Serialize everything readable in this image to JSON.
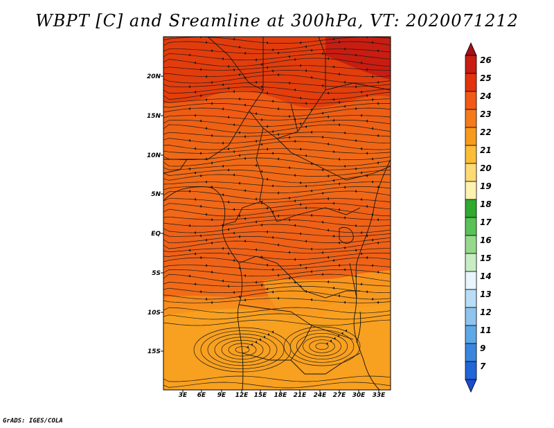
{
  "title": "WBPT [C] and Sreamline at 300hPa, VT: 2020071212",
  "credit": "GrADS: IGES/COLA",
  "map": {
    "variable": "WBPT",
    "units": "C",
    "level": "300hPa",
    "valid_time": "2020071212",
    "lat_labels": [
      "20N",
      "15N",
      "10N",
      "5N",
      "EQ",
      "5S",
      "10S",
      "15S"
    ],
    "lon_labels": [
      "3E",
      "6E",
      "9E",
      "12E",
      "15E",
      "18E",
      "21E",
      "24E",
      "27E",
      "30E",
      "33E"
    ]
  },
  "colorbar": {
    "labels": [
      "26",
      "25",
      "24",
      "23",
      "22",
      "21",
      "20",
      "19",
      "18",
      "17",
      "16",
      "15",
      "14",
      "13",
      "12",
      "11",
      "9",
      "7"
    ],
    "colors": [
      "#a50f15",
      "#c81d10",
      "#e2330c",
      "#f15a14",
      "#f47a1a",
      "#f79a1e",
      "#fbbd38",
      "#fdda74",
      "#fdf2b0",
      "#2faa2e",
      "#58c257",
      "#97d98c",
      "#c8ecc4",
      "#e8f6fb",
      "#b8ddf6",
      "#8fc4ef",
      "#5ea8e8",
      "#3a86de",
      "#2066d6",
      "#1c4bcc"
    ]
  }
}
